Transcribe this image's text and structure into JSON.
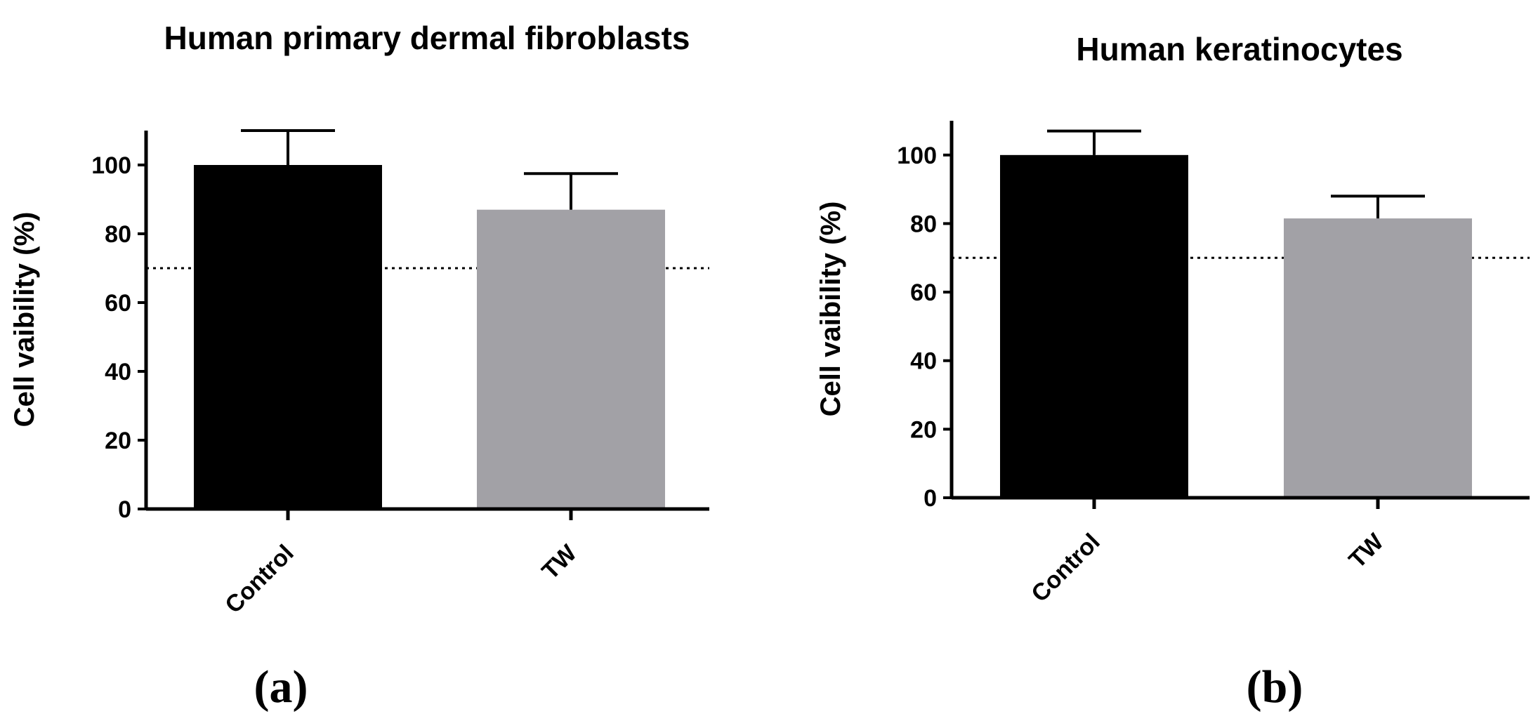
{
  "chart_data": [
    {
      "type": "bar",
      "title": "Human primary dermal fibroblasts",
      "ylabel": "Cell vaibility (%)",
      "xlabel": "",
      "categories": [
        "Control",
        "TW"
      ],
      "values": [
        100,
        87
      ],
      "errors": [
        10,
        10.5
      ],
      "colors": [
        "#000000",
        "#a2a1a6"
      ],
      "ylim": [
        0,
        110
      ],
      "yticks": [
        0,
        20,
        40,
        60,
        80,
        100
      ],
      "threshold": 70,
      "panel_label": "(a)"
    },
    {
      "type": "bar",
      "title": "Human keratinocytes",
      "ylabel": "Cell vaibility (%)",
      "xlabel": "",
      "categories": [
        "Control",
        "TW"
      ],
      "values": [
        100,
        81.5
      ],
      "errors": [
        7,
        6.5
      ],
      "colors": [
        "#000000",
        "#a2a1a6"
      ],
      "ylim": [
        0,
        110
      ],
      "yticks": [
        0,
        20,
        40,
        60,
        80,
        100
      ],
      "threshold": 70,
      "panel_label": "(b)"
    }
  ]
}
